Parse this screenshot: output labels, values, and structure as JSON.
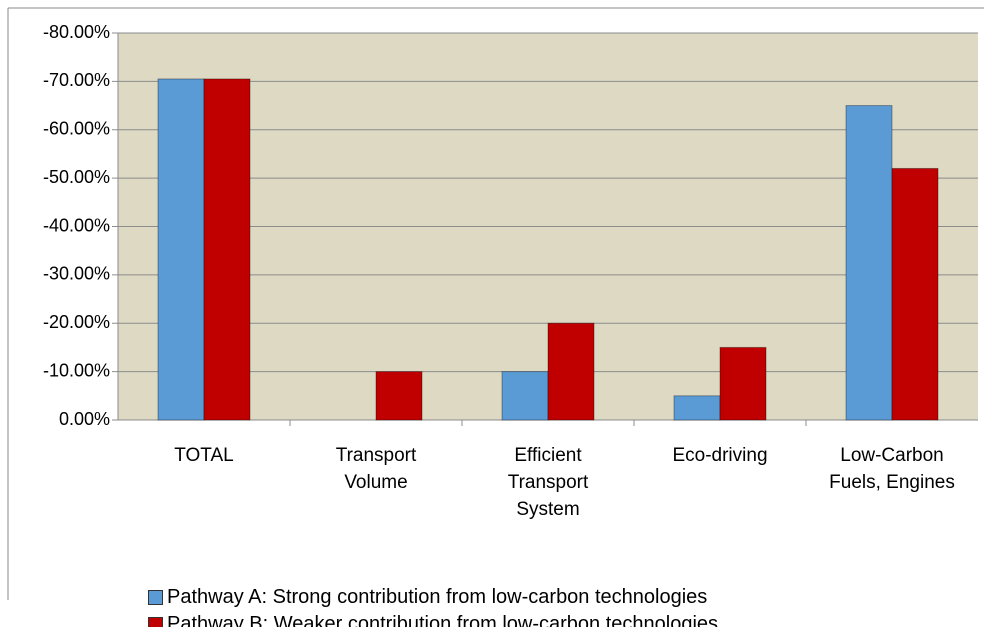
{
  "chart_data": {
    "type": "bar",
    "categories": [
      "TOTAL",
      "Transport\nVolume",
      "Efficient\nTransport\nSystem",
      "Eco-driving",
      "Low-Carbon\nFuels, Engines"
    ],
    "series": [
      {
        "name": "Pathway A: Strong contribution from low-carbon technologies",
        "color": "#5b9bd5",
        "values": [
          -70.5,
          0,
          -10,
          -5,
          -65
        ]
      },
      {
        "name": "Pathway B: Weaker contribution from low-carbon technologies",
        "color": "#c00000",
        "values": [
          -70.5,
          -10,
          -20,
          -15,
          -52
        ]
      }
    ],
    "ylim": [
      0,
      -80
    ],
    "yticks": [
      {
        "value": -80,
        "label": "-80.00%"
      },
      {
        "value": -70,
        "label": "-70.00%"
      },
      {
        "value": -60,
        "label": "-60.00%"
      },
      {
        "value": -50,
        "label": "-50.00%"
      },
      {
        "value": -40,
        "label": "-40.00%"
      },
      {
        "value": -30,
        "label": "-30.00%"
      },
      {
        "value": -20,
        "label": "-20.00%"
      },
      {
        "value": -10,
        "label": "-10.00%"
      },
      {
        "value": 0,
        "label": "0.00%"
      }
    ],
    "grid": true,
    "plot_background": "#ddd9c3",
    "legend": "bottom"
  }
}
